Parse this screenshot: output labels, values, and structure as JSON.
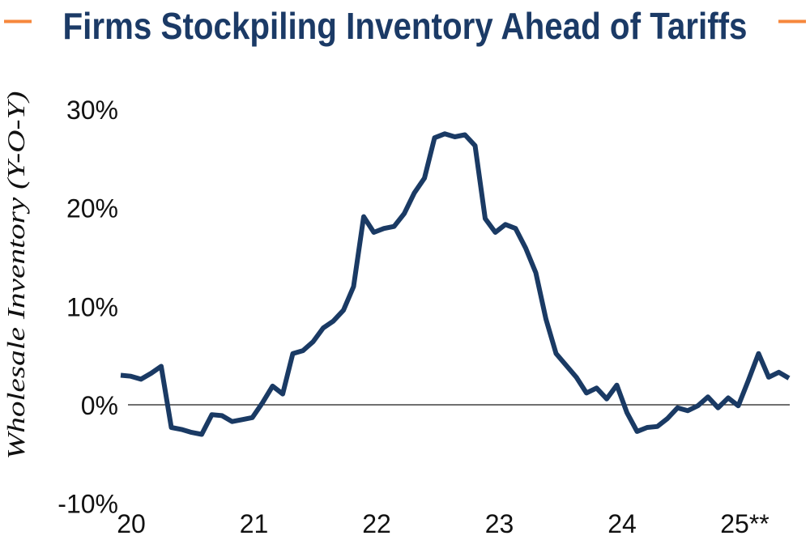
{
  "page": {
    "background_color": "#FFFFFF"
  },
  "header": {
    "title": "Firms Stockpiling Inventory Ahead of Tariffs",
    "title_color": "#1B3A66",
    "accent_dash_color": "#F6873C"
  },
  "chart_data": {
    "type": "line",
    "title": "Firms Stockpiling Inventory Ahead of Tariffs",
    "ylabel": "Wholesale Inventory (Y-O-Y)",
    "xlabel": "",
    "series_name": "Wholesale inventory year-over-year percent change",
    "x": [
      "2019-12",
      "2020-01",
      "2020-02",
      "2020-03",
      "2020-04",
      "2020-05",
      "2020-06",
      "2020-07",
      "2020-08",
      "2020-09",
      "2020-10",
      "2020-11",
      "2020-12",
      "2021-01",
      "2021-02",
      "2021-03",
      "2021-04",
      "2021-05",
      "2021-06",
      "2021-07",
      "2021-08",
      "2021-09",
      "2021-10",
      "2021-11",
      "2021-12",
      "2022-01",
      "2022-02",
      "2022-03",
      "2022-04",
      "2022-05",
      "2022-06",
      "2022-07",
      "2022-08",
      "2022-09",
      "2022-10",
      "2022-11",
      "2022-12",
      "2023-01",
      "2023-02",
      "2023-03",
      "2023-04",
      "2023-05",
      "2023-06",
      "2023-07",
      "2023-08",
      "2023-09",
      "2023-10",
      "2023-11",
      "2023-12",
      "2024-01",
      "2024-02",
      "2024-03",
      "2024-04",
      "2024-05",
      "2024-06",
      "2024-07",
      "2024-08",
      "2024-09",
      "2024-10",
      "2024-11",
      "2024-12",
      "2025-01",
      "2025-02",
      "2025-03",
      "2025-04",
      "2025-05",
      "2025-06"
    ],
    "values": [
      3.0,
      2.9,
      2.6,
      3.2,
      3.9,
      -2.3,
      -2.5,
      -2.8,
      -3.0,
      -1.0,
      -1.1,
      -1.7,
      -1.5,
      -1.3,
      0.2,
      1.9,
      1.1,
      5.2,
      5.5,
      6.4,
      7.8,
      8.5,
      9.6,
      12.0,
      19.1,
      17.5,
      17.9,
      18.1,
      19.4,
      21.5,
      23.0,
      27.1,
      27.5,
      27.2,
      27.4,
      26.3,
      18.9,
      17.5,
      18.3,
      17.9,
      15.9,
      13.4,
      8.7,
      5.2,
      4.0,
      2.8,
      1.2,
      1.7,
      0.6,
      2.0,
      -0.8,
      -2.7,
      -2.3,
      -2.2,
      -1.4,
      -0.3,
      -0.6,
      -0.1,
      0.8,
      -0.3,
      0.7,
      -0.1,
      2.5,
      5.2,
      2.8,
      3.3,
      2.7
    ],
    "x_tick_labels": [
      "20",
      "21",
      "22",
      "23",
      "24",
      "25**"
    ],
    "y_tick_labels": [
      "30%",
      "20%",
      "10%",
      "0%",
      "-10%"
    ],
    "y_tick_values": [
      30,
      20,
      10,
      0,
      -10
    ],
    "ylim": [
      -10,
      30
    ],
    "grid": false,
    "zero_line": true,
    "legend": "none",
    "line_color": "#1A3A64",
    "axis_text_color": "#111111",
    "zero_line_color": "#1A1A1A"
  }
}
